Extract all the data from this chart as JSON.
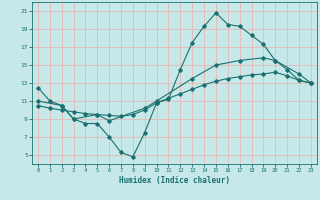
{
  "xlabel": "Humidex (Indice chaleur)",
  "xlim": [
    -0.5,
    23.5
  ],
  "ylim": [
    4,
    22
  ],
  "xticks": [
    0,
    1,
    2,
    3,
    4,
    5,
    6,
    7,
    8,
    9,
    10,
    11,
    12,
    13,
    14,
    15,
    16,
    17,
    18,
    19,
    20,
    21,
    22,
    23
  ],
  "yticks": [
    5,
    7,
    9,
    11,
    13,
    15,
    17,
    19,
    21
  ],
  "background_color": "#c6e8e8",
  "grid_color": "#e8b8b8",
  "line_color": "#1a7070",
  "line1_x": [
    0,
    1,
    2,
    3,
    4,
    5,
    6,
    7,
    8,
    9,
    10,
    11,
    12,
    13,
    14,
    15,
    16,
    17,
    18,
    19,
    20,
    21,
    22,
    23
  ],
  "line1_y": [
    12.5,
    11.0,
    10.5,
    9.0,
    8.5,
    8.5,
    7.0,
    5.3,
    4.8,
    7.5,
    10.8,
    11.2,
    14.5,
    17.5,
    19.3,
    20.8,
    19.5,
    19.3,
    18.3,
    17.3,
    15.5,
    14.5,
    13.3,
    13.0
  ],
  "line2_x": [
    0,
    2,
    3,
    5,
    6,
    9,
    10,
    13,
    15,
    17,
    19,
    20,
    22,
    23
  ],
  "line2_y": [
    11.0,
    10.5,
    9.0,
    9.5,
    8.8,
    10.2,
    11.0,
    13.5,
    15.0,
    15.5,
    15.8,
    15.5,
    14.0,
    13.0
  ],
  "line3_x": [
    0,
    1,
    2,
    3,
    4,
    5,
    6,
    7,
    8,
    9,
    10,
    11,
    12,
    13,
    14,
    15,
    16,
    17,
    18,
    19,
    20,
    21,
    22,
    23
  ],
  "line3_y": [
    10.5,
    10.2,
    10.0,
    9.8,
    9.6,
    9.5,
    9.4,
    9.3,
    9.5,
    10.0,
    10.8,
    11.3,
    11.8,
    12.3,
    12.8,
    13.2,
    13.5,
    13.7,
    13.9,
    14.0,
    14.2,
    13.8,
    13.3,
    13.0
  ]
}
